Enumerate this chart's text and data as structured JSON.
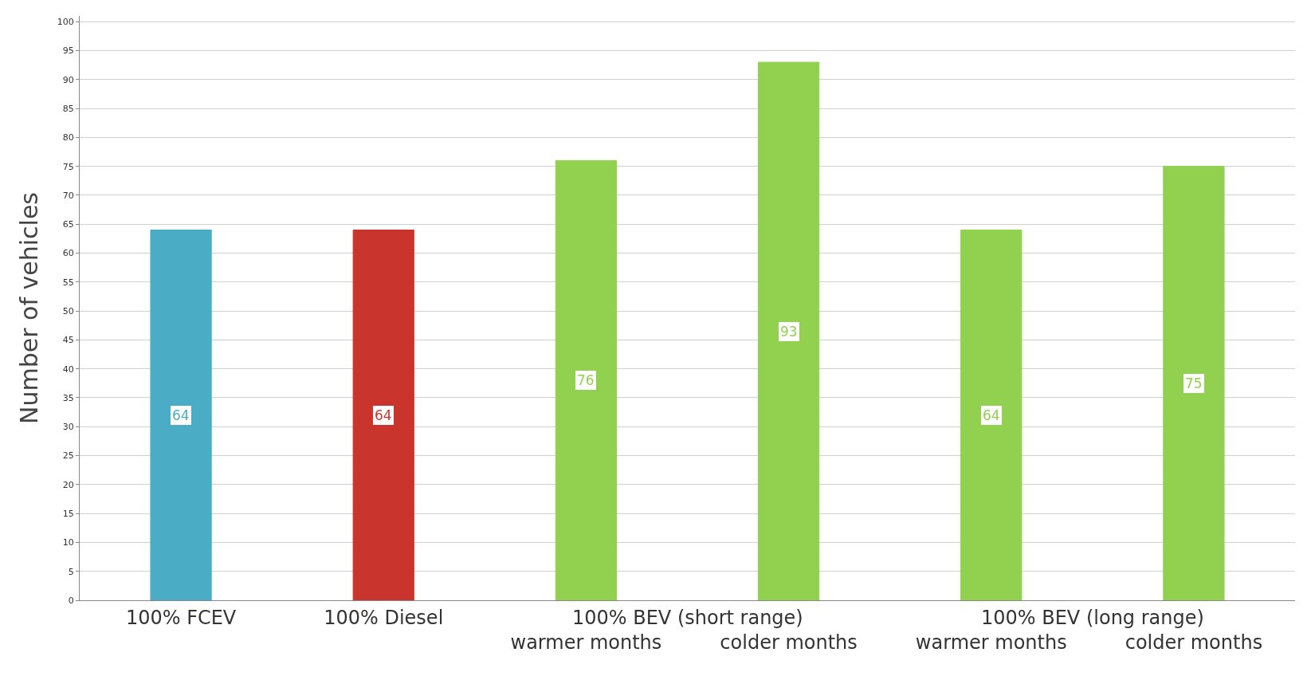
{
  "chart_data": {
    "type": "bar",
    "ylabel": "Number of vehicles",
    "categories": [
      "100% FCEV",
      "100% Diesel",
      "warmer months",
      "colder months",
      "warmer months",
      "colder months"
    ],
    "values": [
      64,
      64,
      76,
      93,
      64,
      75
    ],
    "colors": [
      "#4bacc6",
      "#c9352d",
      "#92d050",
      "#92d050",
      "#92d050",
      "#92d050"
    ],
    "annotations": [
      "100% BEV (short range)",
      "100% BEV (long range)"
    ],
    "ylim": [
      0,
      101
    ],
    "yticks": [
      0,
      5,
      10,
      15,
      20,
      25,
      30,
      35,
      40,
      45,
      50,
      55,
      60,
      65,
      70,
      75,
      80,
      85,
      90,
      95,
      100
    ],
    "grid": "y",
    "data_labels": true
  }
}
